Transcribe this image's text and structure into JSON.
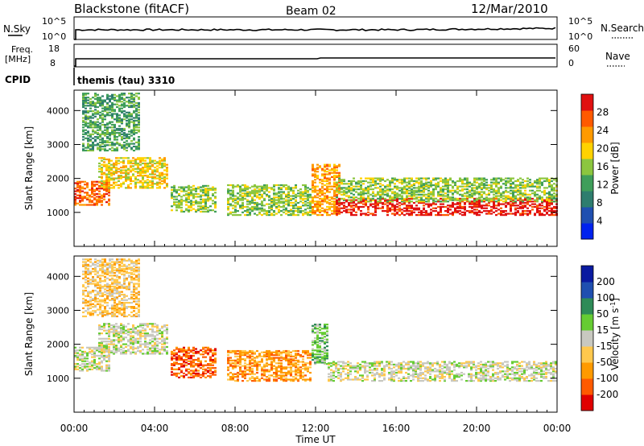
{
  "header": {
    "station": "Blackstone (fitACF)",
    "beam": "Beam 02",
    "date": "12/Mar/2010"
  },
  "strips": {
    "nsky_label": "N.Sky",
    "nsearch_label": "N.Search",
    "freq_label_1": "Freq.",
    "freq_label_2": "[MHz]",
    "nave_label": "Nave",
    "cpid_label": "CPID",
    "cpid_value": "themis (tau) 3310",
    "noise_left_ticks": [
      "10^5",
      "10^0"
    ],
    "noise_right_ticks": [
      "10^5",
      "10^0"
    ],
    "freq_ticks": [
      "18",
      "8"
    ],
    "nave_ticks": [
      "60",
      "0"
    ]
  },
  "colorbars": {
    "power_label": "Power [dB]",
    "power_ticks": [
      "28",
      "24",
      "20",
      "16",
      "12",
      "8",
      "4"
    ],
    "power_colors": [
      "#0022ee",
      "#1f4fb0",
      "#2e7d6e",
      "#3f9e5a",
      "#8cc63f",
      "#ffd200",
      "#ff9a00",
      "#ff5a00",
      "#e01010"
    ],
    "velocity_label": "Velocity [m s",
    "velocity_label_sup": "-1",
    "velocity_label_end": "]",
    "velocity_ticks": [
      "200",
      "100",
      "50",
      "15",
      "-15",
      "-50",
      "-100",
      "-200"
    ],
    "velocity_colors": [
      "#e00000",
      "#ff5a00",
      "#ff9a00",
      "#ffc84d",
      "#c8c8c0",
      "#66cc33",
      "#2e8b57",
      "#1f4fb0",
      "#0a1aa0"
    ]
  },
  "chart_data": [
    {
      "type": "heatmap",
      "name": "power",
      "xlabel": "",
      "ylabel": "Slant Range [km]",
      "xlim": [
        "00:00",
        "24:00"
      ],
      "ylim": [
        0,
        4600
      ],
      "y_ticks": [
        "1000",
        "2000",
        "3000",
        "4000"
      ],
      "regions": [
        {
          "t0": 0.0,
          "t1": 1.8,
          "r0": 1200,
          "r1": 1900,
          "level": 7
        },
        {
          "t0": 1.2,
          "t1": 4.6,
          "r0": 1700,
          "r1": 2600,
          "level": 5
        },
        {
          "t0": 0.4,
          "t1": 3.2,
          "r0": 2800,
          "r1": 4500,
          "level": 3
        },
        {
          "t0": 4.8,
          "t1": 7.0,
          "r0": 1000,
          "r1": 1800,
          "level": 4
        },
        {
          "t0": 7.6,
          "t1": 11.8,
          "r0": 900,
          "r1": 1800,
          "level": 4
        },
        {
          "t0": 11.8,
          "t1": 13.2,
          "r0": 900,
          "r1": 2400,
          "level": 6
        },
        {
          "t0": 13.0,
          "t1": 24.0,
          "r0": 900,
          "r1": 1400,
          "level": 8
        },
        {
          "t0": 13.0,
          "t1": 24.0,
          "r0": 1300,
          "r1": 2000,
          "level": 4
        }
      ]
    },
    {
      "type": "heatmap",
      "name": "velocity",
      "xlabel": "Time UT",
      "ylabel": "Slant Range [km]",
      "xlim": [
        "00:00",
        "24:00"
      ],
      "ylim": [
        0,
        4600
      ],
      "y_ticks": [
        "1000",
        "2000",
        "3000",
        "4000"
      ],
      "x_ticks": [
        "00:00",
        "04:00",
        "08:00",
        "12:00",
        "16:00",
        "20:00",
        "00:00"
      ],
      "regions": [
        {
          "t0": 0.0,
          "t1": 1.8,
          "r0": 1200,
          "r1": 1900,
          "level": 4
        },
        {
          "t0": 1.2,
          "t1": 4.6,
          "r0": 1700,
          "r1": 2600,
          "level": 4
        },
        {
          "t0": 0.4,
          "t1": 3.2,
          "r0": 2800,
          "r1": 4500,
          "level": 3
        },
        {
          "t0": 4.8,
          "t1": 7.0,
          "r0": 1000,
          "r1": 1900,
          "level": 1
        },
        {
          "t0": 7.6,
          "t1": 11.8,
          "r0": 900,
          "r1": 1800,
          "level": 2
        },
        {
          "t0": 11.8,
          "t1": 12.6,
          "r0": 1400,
          "r1": 2600,
          "level": 5
        },
        {
          "t0": 12.6,
          "t1": 24.0,
          "r0": 900,
          "r1": 1500,
          "level": 4
        }
      ]
    }
  ]
}
